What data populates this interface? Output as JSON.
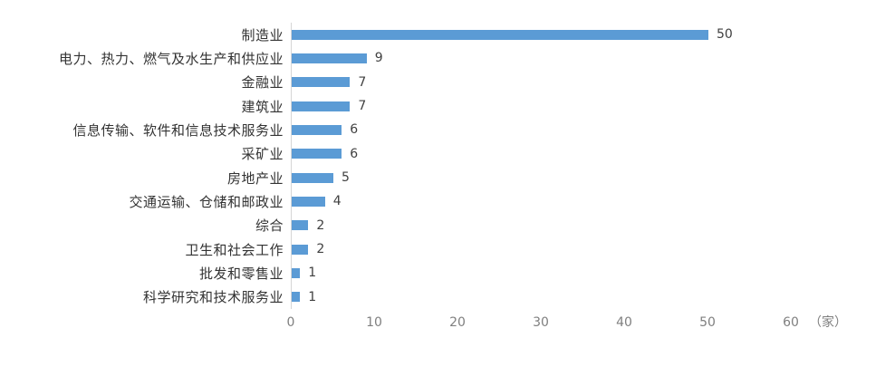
{
  "chart_data": {
    "type": "bar",
    "orientation": "horizontal",
    "title": "",
    "xlabel": "",
    "ylabel": "",
    "unit_label": "（家）",
    "categories": [
      "制造业",
      "电力、热力、燃气及水生产和供应业",
      "金融业",
      "建筑业",
      "信息传输、软件和信息技术服务业",
      "采矿业",
      "房地产业",
      "交通运输、仓储和邮政业",
      "综合",
      "卫生和社会工作",
      "批发和零售业",
      "科学研究和技术服务业"
    ],
    "values": [
      50,
      9,
      7,
      7,
      6,
      6,
      5,
      4,
      2,
      2,
      1,
      1
    ],
    "xlim": [
      0,
      60
    ],
    "x_ticks": [
      0,
      10,
      20,
      30,
      40,
      50,
      60
    ],
    "grid": false,
    "legend": "none",
    "data_labels": true
  },
  "colors": {
    "bar": "#5B9BD5",
    "axis_line": "#D6D6D6",
    "tick_label": "#7F7F7F",
    "value_label": "#404040",
    "category_label": "#333333",
    "background": "#FFFFFF"
  }
}
